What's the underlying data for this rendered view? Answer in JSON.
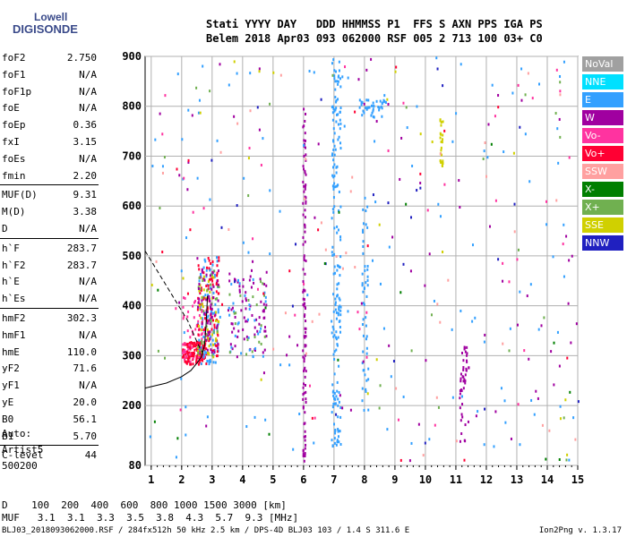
{
  "logo": {
    "line1": "Lowell",
    "line2": "DIGISONDE"
  },
  "header": {
    "row1": "Stati YYYY DAY   DDD HHMMSS P1  FFS S AXN PPS IGA PS",
    "row2": "Belem 2018 Apr03 093 062000 RSF 005 2 713 100 03+ C0"
  },
  "params": [
    {
      "k": "foF2",
      "v": "2.750"
    },
    {
      "k": "foF1",
      "v": "N/A"
    },
    {
      "k": "foF1p",
      "v": "N/A"
    },
    {
      "k": "foE",
      "v": "N/A"
    },
    {
      "k": "foEp",
      "v": "0.36"
    },
    {
      "k": "fxI",
      "v": "3.15"
    },
    {
      "k": "foEs",
      "v": "N/A"
    },
    {
      "k": "fmin",
      "v": "2.20"
    },
    {
      "k": "MUF(D)",
      "v": "9.31"
    },
    {
      "k": "M(D)",
      "v": "3.38"
    },
    {
      "k": "D",
      "v": "N/A"
    },
    {
      "k": "h`F",
      "v": "283.7"
    },
    {
      "k": "h`F2",
      "v": "283.7"
    },
    {
      "k": "h`E",
      "v": "N/A"
    },
    {
      "k": "h`Es",
      "v": "N/A"
    },
    {
      "k": "hmF2",
      "v": "302.3"
    },
    {
      "k": "hmF1",
      "v": "N/A"
    },
    {
      "k": "hmE",
      "v": "110.0"
    },
    {
      "k": "yF2",
      "v": "71.6"
    },
    {
      "k": "yF1",
      "v": "N/A"
    },
    {
      "k": "yE",
      "v": "20.0"
    },
    {
      "k": "B0",
      "v": "56.1"
    },
    {
      "k": "B1",
      "v": "5.70"
    },
    {
      "k": "C-level",
      "v": "44"
    }
  ],
  "auto": {
    "line1": "Auto:",
    "line2": "Artist5",
    "line3": "500200"
  },
  "muf_table": {
    "d_row": "D    100  200  400  600  800 1000 1500 3000 [km]",
    "muf_row": "MUF   3.1  3.1  3.3  3.5  3.8  4.3  5.7  9.3 [MHz]"
  },
  "footer": {
    "left": "BLJ03_2018093062000.RSF / 284fx512h 50 kHz 2.5 km / DPS-4D BLJ03 103 / 1.4 S 311.6 E",
    "right": "Ion2Png v. 1.3.17"
  },
  "legend": [
    {
      "label": "NoVal",
      "color": "#a0a0a0"
    },
    {
      "label": "NNE",
      "color": "#00e0ff"
    },
    {
      "label": "E",
      "color": "#33a0ff"
    },
    {
      "label": "W",
      "color": "#a000a0"
    },
    {
      "label": "Vo-",
      "color": "#ff33a0"
    },
    {
      "label": "Vo+",
      "color": "#ff0033"
    },
    {
      "label": "SSW",
      "color": "#ffa0a0"
    },
    {
      "label": "X-",
      "color": "#007f00"
    },
    {
      "label": "X+",
      "color": "#70b050"
    },
    {
      "label": "SSE",
      "color": "#d0d000"
    },
    {
      "label": "NNW",
      "color": "#2020c0"
    }
  ],
  "chart_data": {
    "type": "scatter",
    "xlim": [
      0.8,
      15
    ],
    "ylim": [
      80,
      900
    ],
    "xticks": [
      "1",
      "2",
      "3",
      "4",
      "5",
      "6",
      "7",
      "8",
      "9",
      "10",
      "11",
      "12",
      "13",
      "14",
      "15"
    ],
    "yticks": [
      "80",
      "200",
      "300",
      "400",
      "500",
      "600",
      "700",
      "800",
      "900"
    ],
    "grid": true,
    "curves": [
      {
        "name": "trace-solid",
        "style": "solid",
        "points": [
          [
            0.8,
            235
          ],
          [
            1.5,
            245
          ],
          [
            2.0,
            258
          ],
          [
            2.3,
            270
          ],
          [
            2.5,
            285
          ],
          [
            2.65,
            298
          ],
          [
            2.75,
            320
          ],
          [
            2.8,
            360
          ],
          [
            2.85,
            420
          ]
        ]
      },
      {
        "name": "trace-dashed",
        "style": "dashed",
        "points": [
          [
            0.8,
            510
          ],
          [
            1.3,
            460
          ],
          [
            1.8,
            410
          ],
          [
            2.2,
            370
          ],
          [
            2.45,
            335
          ],
          [
            2.6,
            315
          ],
          [
            2.7,
            305
          ]
        ]
      }
    ],
    "clusters": [
      {
        "x": [
          2.0,
          2.8
        ],
        "y": [
          285,
          330
        ],
        "color": "#ff0033",
        "n": 140
      },
      {
        "x": [
          2.0,
          2.8
        ],
        "y": [
          290,
          420
        ],
        "color": "#ff33a0",
        "n": 60
      },
      {
        "x": [
          2.5,
          3.2
        ],
        "y": [
          285,
          500
        ],
        "color": "#33a0ff",
        "n": 90
      },
      {
        "x": [
          2.5,
          3.2
        ],
        "y": [
          300,
          500
        ],
        "color": "#ff0033",
        "n": 90
      },
      {
        "x": [
          2.5,
          3.2
        ],
        "y": [
          300,
          480
        ],
        "color": "#d0d000",
        "n": 40
      },
      {
        "x": [
          2.5,
          3.2
        ],
        "y": [
          300,
          480
        ],
        "color": "#70b050",
        "n": 30
      },
      {
        "x": [
          2.5,
          3.2
        ],
        "y": [
          300,
          480
        ],
        "color": "#a000a0",
        "n": 50
      },
      {
        "x": [
          3.5,
          4.8
        ],
        "y": [
          300,
          480
        ],
        "color": "#a000a0",
        "n": 70
      },
      {
        "x": [
          3.5,
          4.8
        ],
        "y": [
          300,
          460
        ],
        "color": "#33a0ff",
        "n": 30
      },
      {
        "x": [
          3.5,
          4.8
        ],
        "y": [
          300,
          460
        ],
        "color": "#70b050",
        "n": 20
      },
      {
        "x": [
          5.95,
          6.05
        ],
        "y": [
          90,
          800
        ],
        "color": "#a000a0",
        "n": 110
      },
      {
        "x": [
          6.9,
          7.2
        ],
        "y": [
          120,
          900
        ],
        "color": "#33a0ff",
        "n": 180
      },
      {
        "x": [
          7.8,
          8.7
        ],
        "y": [
          780,
          820
        ],
        "color": "#33a0ff",
        "n": 40
      },
      {
        "x": [
          7.9,
          8.1
        ],
        "y": [
          150,
          620
        ],
        "color": "#33a0ff",
        "n": 50
      },
      {
        "x": [
          10.45,
          10.55
        ],
        "y": [
          680,
          790
        ],
        "color": "#d0d000",
        "n": 25
      },
      {
        "x": [
          11.1,
          11.4
        ],
        "y": [
          130,
          320
        ],
        "color": "#a000a0",
        "n": 45
      },
      {
        "x": [
          0.9,
          15
        ],
        "y": [
          90,
          900
        ],
        "color": "#33a0ff",
        "n": 120
      },
      {
        "x": [
          0.9,
          15
        ],
        "y": [
          90,
          900
        ],
        "color": "#a000a0",
        "n": 70
      },
      {
        "x": [
          0.9,
          15
        ],
        "y": [
          90,
          900
        ],
        "color": "#ff33a0",
        "n": 40
      },
      {
        "x": [
          0.9,
          15
        ],
        "y": [
          90,
          900
        ],
        "color": "#ffa0a0",
        "n": 40
      },
      {
        "x": [
          0.9,
          15
        ],
        "y": [
          90,
          900
        ],
        "color": "#70b050",
        "n": 25
      },
      {
        "x": [
          0.9,
          15
        ],
        "y": [
          90,
          900
        ],
        "color": "#d0d000",
        "n": 20
      },
      {
        "x": [
          0.9,
          15
        ],
        "y": [
          90,
          900
        ],
        "color": "#2020c0",
        "n": 25
      },
      {
        "x": [
          0.9,
          15
        ],
        "y": [
          90,
          900
        ],
        "color": "#007f00",
        "n": 15
      },
      {
        "x": [
          0.9,
          15
        ],
        "y": [
          90,
          900
        ],
        "color": "#ff0033",
        "n": 20
      }
    ]
  }
}
